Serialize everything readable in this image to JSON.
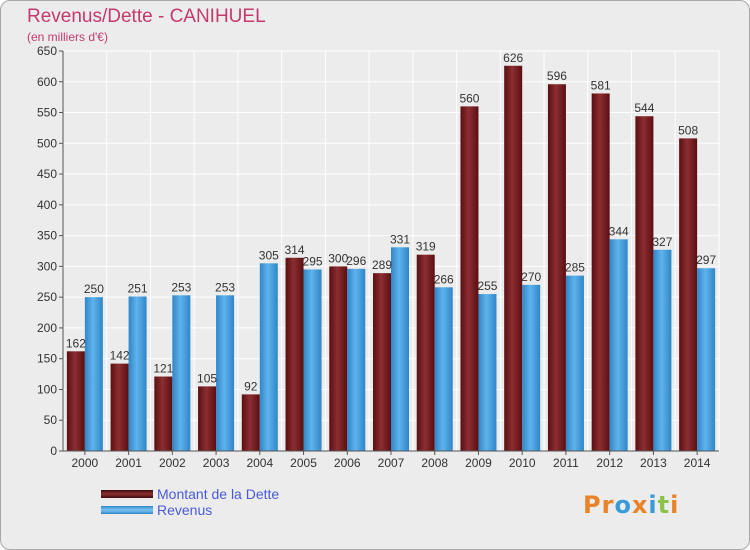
{
  "header": {
    "title": "Revenus/Dette - CANIHUEL",
    "subtitle": "(en milliers d'€)"
  },
  "legend": {
    "debt_label": "Montant de la Dette",
    "revenue_label": "Revenus"
  },
  "logo": {
    "letters": [
      "P",
      "r",
      "o",
      "x",
      "i",
      "t",
      "i"
    ],
    "colors": [
      "#e8832a",
      "#e8832a",
      "#3a9ad9",
      "#e8832a",
      "#3a9ad9",
      "#8bc34a",
      "#e8832a"
    ]
  },
  "colors": {
    "debt": "#7a1f22",
    "revenue": "#4aa3e0",
    "title": "#c43a6e",
    "legend_text": "#4a5ad8"
  },
  "chart_data": {
    "type": "bar",
    "categories": [
      "2000",
      "2001",
      "2002",
      "2003",
      "2004",
      "2005",
      "2006",
      "2007",
      "2008",
      "2009",
      "2010",
      "2011",
      "2012",
      "2013",
      "2014"
    ],
    "series": [
      {
        "name": "Montant de la Dette",
        "values": [
          162,
          142,
          121,
          105,
          92,
          314,
          300,
          289,
          319,
          560,
          626,
          596,
          581,
          544,
          508
        ]
      },
      {
        "name": "Revenus",
        "values": [
          250,
          251,
          253,
          253,
          305,
          295,
          296,
          331,
          266,
          255,
          270,
          285,
          344,
          327,
          297
        ]
      }
    ],
    "ylim": [
      0,
      650
    ],
    "yticks": [
      0,
      50,
      100,
      150,
      200,
      250,
      300,
      350,
      400,
      450,
      500,
      550,
      600,
      650
    ],
    "grid": true,
    "legend_position": "bottom-left"
  }
}
